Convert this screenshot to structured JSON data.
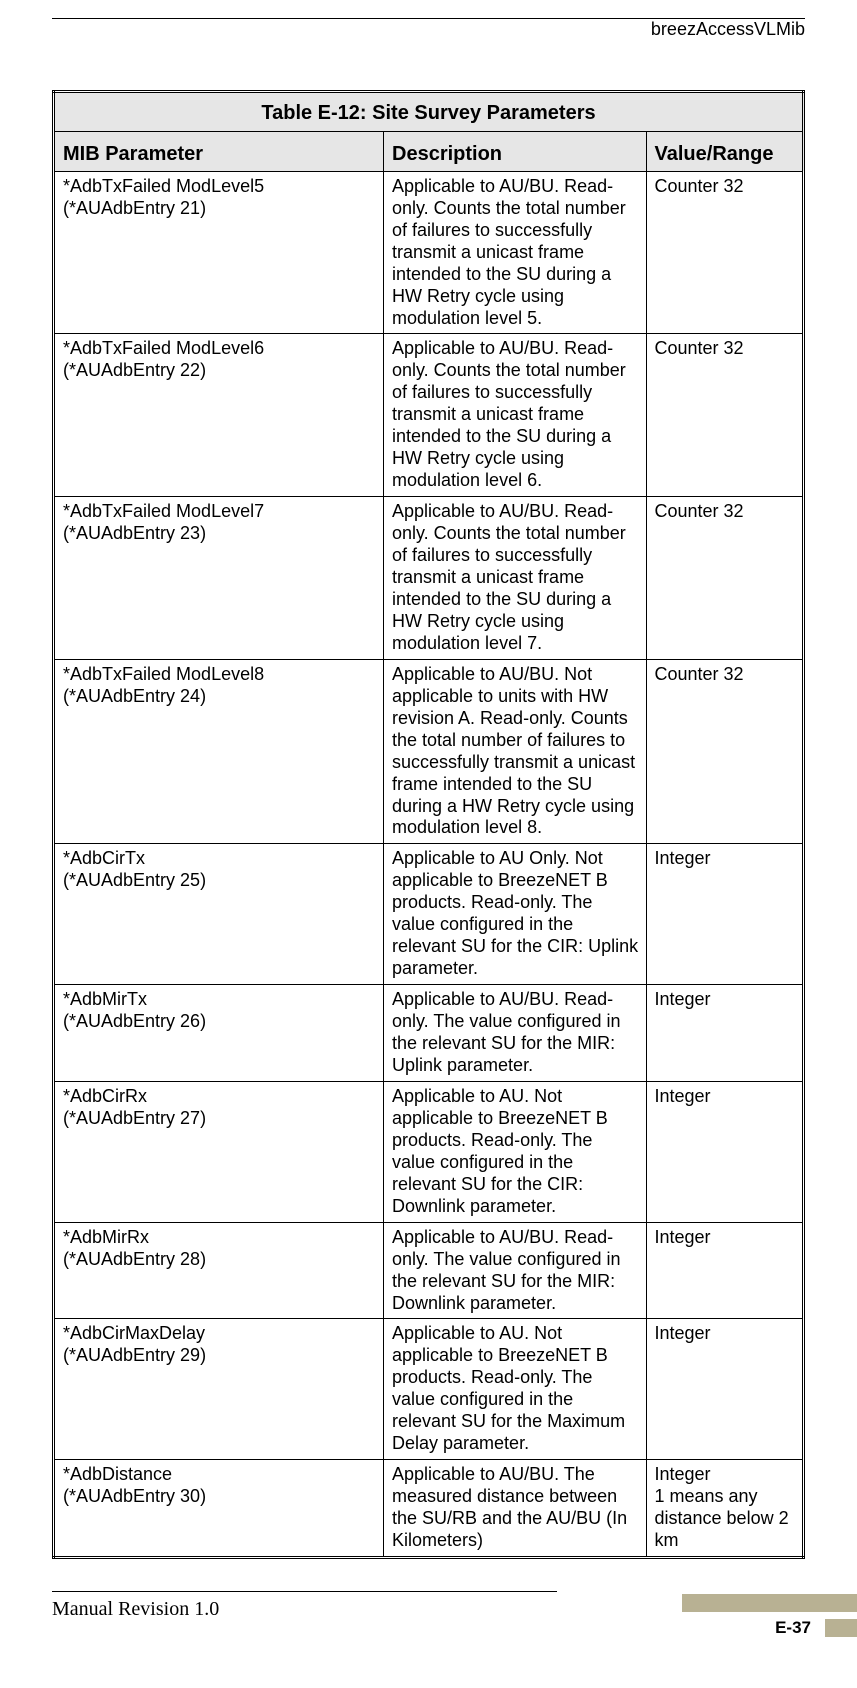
{
  "header": {
    "doc_label": "breezAccessVLMib"
  },
  "table": {
    "title": "Table E-12: Site Survey Parameters",
    "columns": {
      "param": "MIB Parameter",
      "desc": "Description",
      "val": "Value/Range"
    },
    "rows": [
      {
        "param_line1": "*AdbTxFailed ModLevel5",
        "param_line2": "(*AUAdbEntry 21)",
        "desc": "Applicable to AU/BU. Read-only. Counts the total number of failures to successfully transmit a unicast frame intended to the SU during a HW Retry cycle using modulation level 5.",
        "val": "Counter 32"
      },
      {
        "param_line1": "*AdbTxFailed ModLevel6",
        "param_line2": "(*AUAdbEntry 22)",
        "desc": "Applicable to AU/BU. Read-only. Counts the total number of failures to successfully transmit a unicast frame intended to the SU during a HW Retry cycle using modulation level 6.",
        "val": "Counter 32"
      },
      {
        "param_line1": "*AdbTxFailed ModLevel7",
        "param_line2": "(*AUAdbEntry 23)",
        "desc": "Applicable to AU/BU. Read-only. Counts the total number of failures to successfully transmit a unicast frame intended to the SU during a HW Retry cycle using modulation level 7.",
        "val": "Counter 32"
      },
      {
        "param_line1": "*AdbTxFailed ModLevel8",
        "param_line2": "(*AUAdbEntry 24)",
        "desc": "Applicable to AU/BU. Not applicable to units with HW revision A. Read-only. Counts the total number of failures to successfully transmit a unicast frame  intended to the SU during a HW Retry cycle using modulation level 8.",
        "val": "Counter 32"
      },
      {
        "param_line1": "*AdbCirTx",
        "param_line2": "(*AUAdbEntry 25)",
        "desc": "Applicable to AU Only. Not applicable to BreezeNET B products. Read-only. The value configured in the relevant SU for the CIR: Uplink parameter.",
        "val": "Integer"
      },
      {
        "param_line1": "*AdbMirTx",
        "param_line2": "(*AUAdbEntry 26)",
        "desc": "Applicable to AU/BU. Read-only. The value configured in the relevant SU for the MIR: Uplink parameter.",
        "val": "Integer"
      },
      {
        "param_line1": "*AdbCirRx",
        "param_line2": "(*AUAdbEntry 27)",
        "desc": "Applicable to AU. Not applicable to BreezeNET B products. Read-only. The value configured in the relevant SU for the CIR: Downlink parameter.",
        "val": "Integer"
      },
      {
        "param_line1": "*AdbMirRx",
        "param_line2": "(*AUAdbEntry 28)",
        "desc": "Applicable to AU/BU. Read-only. The value configured in the relevant SU for the MIR: Downlink parameter.",
        "val": "Integer"
      },
      {
        "param_line1": "*AdbCirMaxDelay",
        "param_line2": "(*AUAdbEntry 29)",
        "desc": "Applicable to AU. Not applicable to BreezeNET B products. Read-only. The value configured in the relevant SU for the Maximum Delay parameter.",
        "val": "Integer"
      },
      {
        "param_line1": "*AdbDistance",
        "param_line2": "(*AUAdbEntry 30)",
        "desc": "Applicable to AU/BU. The measured distance between the SU/RB and the AU/BU (In Kilometers)",
        "val": "Integer\n1 means any distance below 2 km"
      }
    ]
  },
  "footer": {
    "manual_rev": "Manual Revision 1.0",
    "page_number": "E-37",
    "bar_color": "#b8b193"
  }
}
